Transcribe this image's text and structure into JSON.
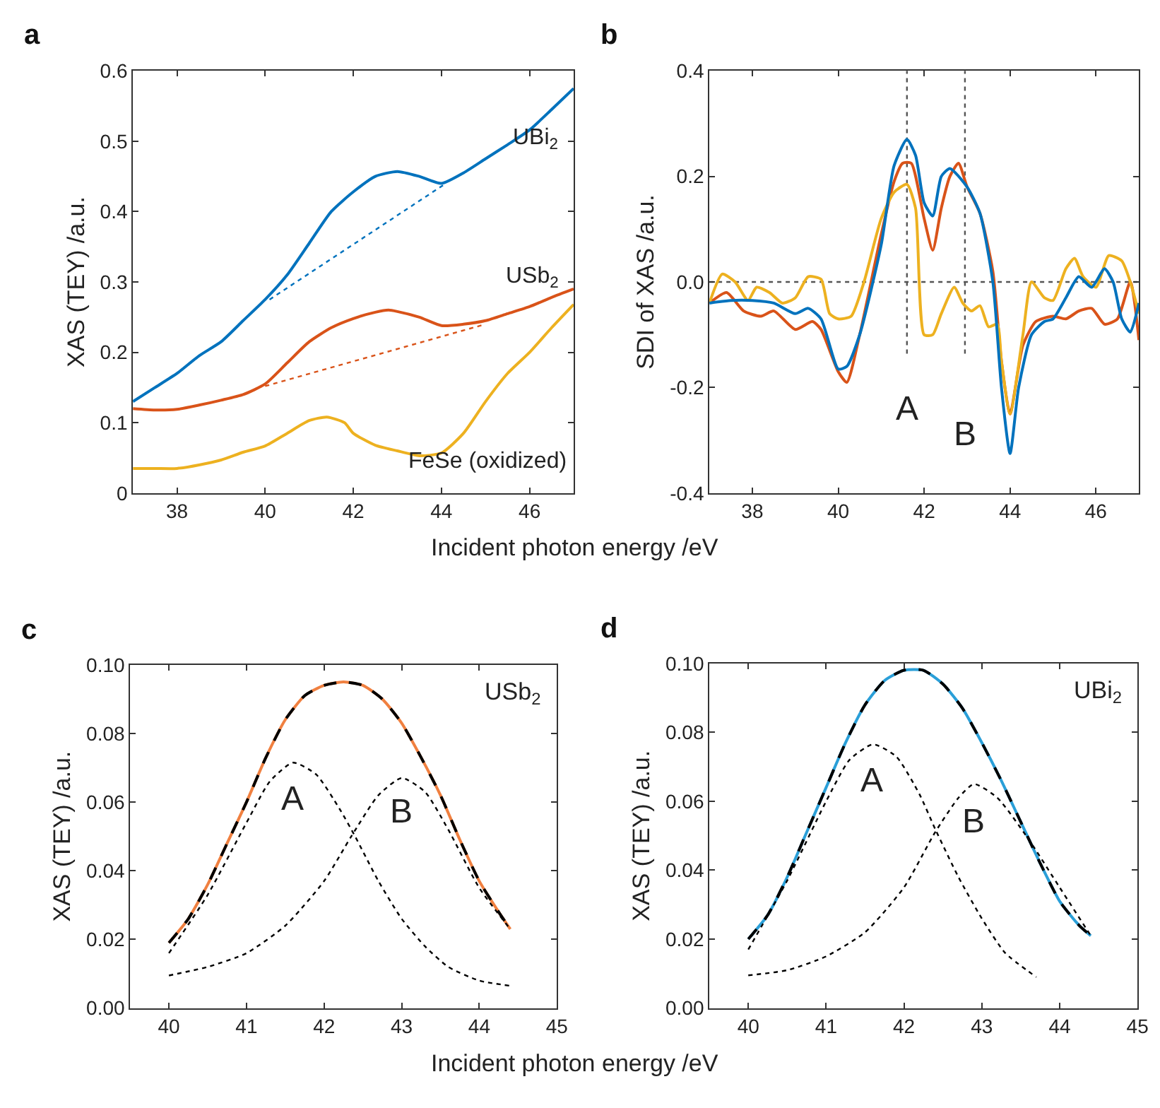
{
  "chart_data": [
    {
      "type": "line",
      "title": "a",
      "xlabel": "Incident photon energy /eV",
      "ylabel": "XAS (TEY) /a.u.",
      "xlim": [
        37,
        47
      ],
      "ylim": [
        0,
        0.6
      ],
      "xticks": [
        38,
        40,
        42,
        44,
        46
      ],
      "yticks": [
        0,
        0.1,
        0.2,
        0.3,
        0.4,
        0.5,
        0.6
      ],
      "grid": false,
      "series": [
        {
          "name": "UBi$_{2}$",
          "color": "#0072bd",
          "line_style": "solid",
          "x": [
            37,
            37.5,
            38,
            38.5,
            39,
            39.5,
            40,
            40.5,
            41,
            41.5,
            42,
            42.5,
            43,
            43.5,
            44,
            44.5,
            45,
            45.5,
            46,
            46.5,
            47
          ],
          "values": [
            0.13,
            0.15,
            0.17,
            0.195,
            0.215,
            0.245,
            0.275,
            0.31,
            0.355,
            0.4,
            0.428,
            0.45,
            0.457,
            0.45,
            0.44,
            0.455,
            0.475,
            0.495,
            0.516,
            0.545,
            0.575
          ]
        },
        {
          "color": "#0072bd",
          "line_style": "dotted",
          "x": [
            40.1,
            44.1
          ],
          "values": [
            0.275,
            0.44
          ]
        },
        {
          "name": "USb$_{2}$",
          "color": "#d95319",
          "line_style": "solid",
          "x": [
            37,
            37.5,
            38,
            38.5,
            39,
            39.5,
            40,
            40.5,
            41,
            41.5,
            42,
            42.5,
            42.8,
            43,
            43.5,
            44,
            44.5,
            45,
            45.5,
            46,
            46.5,
            47
          ],
          "values": [
            0.12,
            0.118,
            0.119,
            0.125,
            0.132,
            0.14,
            0.155,
            0.185,
            0.215,
            0.235,
            0.248,
            0.257,
            0.26,
            0.258,
            0.25,
            0.238,
            0.24,
            0.245,
            0.255,
            0.265,
            0.278,
            0.29
          ]
        },
        {
          "color": "#d95319",
          "line_style": "dotted",
          "x": [
            40,
            45
          ],
          "values": [
            0.152,
            0.24
          ]
        },
        {
          "name": "FeSe (oxidized)",
          "color": "#edb120",
          "line_style": "solid",
          "x": [
            37,
            37.5,
            38,
            38.5,
            39,
            39.5,
            40,
            40.5,
            41,
            41.4,
            41.8,
            42,
            42.5,
            43,
            43.5,
            44,
            44.5,
            45,
            45.5,
            46,
            46.5,
            47
          ],
          "values": [
            0.035,
            0.035,
            0.035,
            0.04,
            0.047,
            0.058,
            0.067,
            0.085,
            0.103,
            0.108,
            0.1,
            0.085,
            0.068,
            0.06,
            0.053,
            0.057,
            0.085,
            0.13,
            0.17,
            0.2,
            0.235,
            0.268
          ]
        }
      ]
    },
    {
      "type": "line",
      "title": "b",
      "ylabel": "SDI of XAS /a.u.",
      "xlim": [
        37,
        47
      ],
      "ylim": [
        -0.4,
        0.4
      ],
      "xticks": [
        38,
        40,
        42,
        44,
        46
      ],
      "yticks": [
        -0.4,
        -0.2,
        {
          "value": 0,
          "label": "0.0"
        },
        0.2,
        0.4
      ],
      "grid": false,
      "ref_lines": [
        {
          "axis": "y",
          "value": 0,
          "color": "#555555",
          "line_style": "dotted"
        },
        {
          "axis": "x",
          "value": 41.6,
          "color": "#555555",
          "line_style": "dotted"
        },
        {
          "axis": "x",
          "value": 42.95,
          "color": "#555555",
          "line_style": "dotted"
        }
      ],
      "annotations": [
        "A",
        "B"
      ],
      "series": [
        {
          "color": "#d95319",
          "line_style": "solid",
          "x": [
            37,
            37.4,
            37.8,
            38.2,
            38.5,
            39,
            39.4,
            39.6,
            40,
            40.2,
            40.5,
            41,
            41.3,
            41.5,
            41.7,
            42,
            42.2,
            42.4,
            42.6,
            42.8,
            43,
            43.3,
            43.6,
            43.8,
            44,
            44.3,
            44.6,
            45,
            45.3,
            45.6,
            45.9,
            46.2,
            46.5,
            46.8,
            47
          ],
          "values": [
            -0.04,
            -0.02,
            -0.055,
            -0.065,
            -0.055,
            -0.09,
            -0.075,
            -0.09,
            -0.17,
            -0.19,
            -0.1,
            0.09,
            0.19,
            0.225,
            0.225,
            0.12,
            0.06,
            0.14,
            0.2,
            0.225,
            0.18,
            0.13,
            0.02,
            -0.15,
            -0.25,
            -0.12,
            -0.075,
            -0.065,
            -0.07,
            -0.055,
            -0.05,
            -0.08,
            -0.07,
            0.0,
            -0.11
          ]
        },
        {
          "color": "#edb120",
          "line_style": "solid",
          "x": [
            37,
            37.3,
            37.6,
            37.9,
            38.1,
            38.4,
            38.7,
            39,
            39.3,
            39.6,
            39.8,
            40,
            40.3,
            40.6,
            41,
            41.3,
            41.6,
            41.8,
            42,
            42.2,
            42.4,
            42.7,
            42.9,
            43.1,
            43.3,
            43.5,
            43.7,
            43.8,
            44,
            44.3,
            44.5,
            44.8,
            45,
            45.3,
            45.5,
            45.7,
            46,
            46.3,
            46.6,
            46.8,
            47
          ],
          "values": [
            -0.04,
            0.015,
            0.0,
            -0.035,
            -0.01,
            -0.02,
            -0.04,
            -0.03,
            0.01,
            0.005,
            -0.06,
            -0.07,
            -0.065,
            0.0,
            0.12,
            0.17,
            0.185,
            0.14,
            -0.1,
            -0.1,
            -0.06,
            -0.01,
            -0.04,
            -0.055,
            -0.045,
            -0.085,
            -0.08,
            -0.15,
            -0.25,
            -0.1,
            0.0,
            -0.03,
            -0.035,
            0.025,
            0.045,
            0.01,
            -0.01,
            0.05,
            0.04,
            0.0,
            -0.06
          ]
        },
        {
          "color": "#0072bd",
          "line_style": "solid",
          "x": [
            37,
            37.5,
            38,
            38.5,
            39,
            39.3,
            39.6,
            40,
            40.2,
            40.5,
            41,
            41.3,
            41.6,
            41.8,
            42,
            42.2,
            42.4,
            42.6,
            43,
            43.3,
            43.6,
            43.8,
            44,
            44.2,
            44.5,
            44.8,
            45,
            45.3,
            45.6,
            45.9,
            46.2,
            46.4,
            46.6,
            46.8,
            47
          ],
          "values": [
            -0.04,
            -0.035,
            -0.035,
            -0.04,
            -0.06,
            -0.05,
            -0.07,
            -0.165,
            -0.16,
            -0.1,
            0.07,
            0.22,
            0.27,
            0.24,
            0.15,
            0.125,
            0.2,
            0.215,
            0.18,
            0.13,
            0.0,
            -0.2,
            -0.325,
            -0.2,
            -0.1,
            -0.075,
            -0.07,
            -0.03,
            0.01,
            -0.01,
            0.025,
            0.0,
            -0.07,
            -0.095,
            -0.04
          ]
        }
      ]
    },
    {
      "type": "line",
      "title": "c",
      "xlabel": "Incident photon energy /eV",
      "ylabel": "XAS (TEY) /a.u.",
      "xlim": [
        39.5,
        45
      ],
      "ylim": [
        0,
        0.1
      ],
      "xticks": [
        40,
        41,
        42,
        43,
        44,
        45
      ],
      "yticks": [
        {
          "value": 0,
          "label": "0.00"
        },
        {
          "value": 0.02,
          "label": "0.02"
        },
        {
          "value": 0.04,
          "label": "0.04"
        },
        {
          "value": 0.06,
          "label": "0.06"
        },
        {
          "value": 0.08,
          "label": "0.08"
        },
        {
          "value": 0.1,
          "label": "0.10"
        }
      ],
      "grid": false,
      "annotations": [
        "USb$_{2}$",
        "A",
        "B"
      ],
      "series": [
        {
          "color": "#f08040",
          "line_style": "solid",
          "x": [
            40,
            40.25,
            40.5,
            40.75,
            41,
            41.25,
            41.5,
            41.75,
            42,
            42.25,
            42.5,
            42.75,
            43,
            43.25,
            43.5,
            43.75,
            44,
            44.25,
            44.4
          ],
          "values": [
            0.019,
            0.026,
            0.036,
            0.048,
            0.06,
            0.073,
            0.084,
            0.091,
            0.094,
            0.095,
            0.094,
            0.09,
            0.083,
            0.073,
            0.062,
            0.049,
            0.037,
            0.028,
            0.023
          ]
        },
        {
          "color": "#000000",
          "line_style": "dashed",
          "x": [
            40,
            40.25,
            40.5,
            40.75,
            41,
            41.25,
            41.5,
            41.75,
            42,
            42.25,
            42.5,
            42.75,
            43,
            43.25,
            43.5,
            43.75,
            44,
            44.25,
            44.4
          ],
          "values": [
            0.019,
            0.026,
            0.036,
            0.048,
            0.06,
            0.073,
            0.084,
            0.091,
            0.094,
            0.095,
            0.094,
            0.09,
            0.083,
            0.073,
            0.062,
            0.049,
            0.037,
            0.028,
            0.023
          ]
        },
        {
          "color": "#000000",
          "line_style": "dotted",
          "x": [
            40,
            40.5,
            41,
            41.3,
            41.6,
            41.9,
            42.2,
            42.4,
            42.7,
            43,
            43.3,
            43.6,
            44,
            44.4
          ],
          "values": [
            0.016,
            0.033,
            0.054,
            0.066,
            0.0715,
            0.068,
            0.058,
            0.05,
            0.037,
            0.026,
            0.018,
            0.012,
            0.008,
            0.0065
          ]
        },
        {
          "color": "#000000",
          "line_style": "dotted",
          "x": [
            40,
            40.5,
            41,
            41.5,
            42,
            42.35,
            42.7,
            43,
            43.3,
            43.6,
            44,
            44.4
          ],
          "values": [
            0.0095,
            0.012,
            0.016,
            0.024,
            0.037,
            0.05,
            0.062,
            0.067,
            0.063,
            0.052,
            0.035,
            0.023
          ]
        }
      ]
    },
    {
      "type": "line",
      "title": "d",
      "ylabel": "XAS (TEY) /a.u.",
      "xlim": [
        39.5,
        45
      ],
      "ylim": [
        0,
        0.1
      ],
      "xticks": [
        40,
        41,
        42,
        43,
        44,
        45
      ],
      "yticks": [
        {
          "value": 0,
          "label": "0.00"
        },
        {
          "value": 0.02,
          "label": "0.02"
        },
        {
          "value": 0.04,
          "label": "0.04"
        },
        {
          "value": 0.06,
          "label": "0.06"
        },
        {
          "value": 0.08,
          "label": "0.08"
        },
        {
          "value": 0.1,
          "label": "0.10"
        }
      ],
      "grid": false,
      "annotations": [
        "UBi$_{2}$",
        "A",
        "B"
      ],
      "series": [
        {
          "color": "#2a9fd8",
          "line_style": "solid",
          "x": [
            40,
            40.25,
            40.5,
            40.75,
            41,
            41.25,
            41.5,
            41.75,
            42,
            42.25,
            42.5,
            42.75,
            43,
            43.25,
            43.5,
            43.75,
            44,
            44.25,
            44.4
          ],
          "values": [
            0.02,
            0.027,
            0.038,
            0.051,
            0.064,
            0.077,
            0.088,
            0.095,
            0.098,
            0.098,
            0.094,
            0.087,
            0.077,
            0.066,
            0.054,
            0.042,
            0.031,
            0.024,
            0.021
          ]
        },
        {
          "color": "#000000",
          "line_style": "dashed",
          "x": [
            40,
            40.25,
            40.5,
            40.75,
            41,
            41.25,
            41.5,
            41.75,
            42,
            42.25,
            42.5,
            42.75,
            43,
            43.25,
            43.5,
            43.75,
            44,
            44.25,
            44.4
          ],
          "values": [
            0.02,
            0.027,
            0.038,
            0.051,
            0.064,
            0.077,
            0.088,
            0.095,
            0.098,
            0.098,
            0.094,
            0.087,
            0.077,
            0.066,
            0.054,
            0.042,
            0.031,
            0.024,
            0.021
          ]
        },
        {
          "color": "#000000",
          "line_style": "dotted",
          "x": [
            40,
            40.5,
            41,
            41.3,
            41.6,
            41.9,
            42.2,
            42.4,
            42.7,
            43,
            43.3,
            43.7
          ],
          "values": [
            0.017,
            0.037,
            0.06,
            0.072,
            0.0765,
            0.073,
            0.062,
            0.052,
            0.038,
            0.026,
            0.016,
            0.009
          ]
        },
        {
          "color": "#000000",
          "line_style": "dotted",
          "x": [
            40,
            40.5,
            41,
            41.5,
            42,
            42.4,
            42.7,
            42.9,
            43.2,
            43.6,
            44,
            44.4
          ],
          "values": [
            0.0095,
            0.011,
            0.015,
            0.022,
            0.035,
            0.051,
            0.061,
            0.065,
            0.061,
            0.049,
            0.035,
            0.021
          ]
        }
      ]
    }
  ]
}
